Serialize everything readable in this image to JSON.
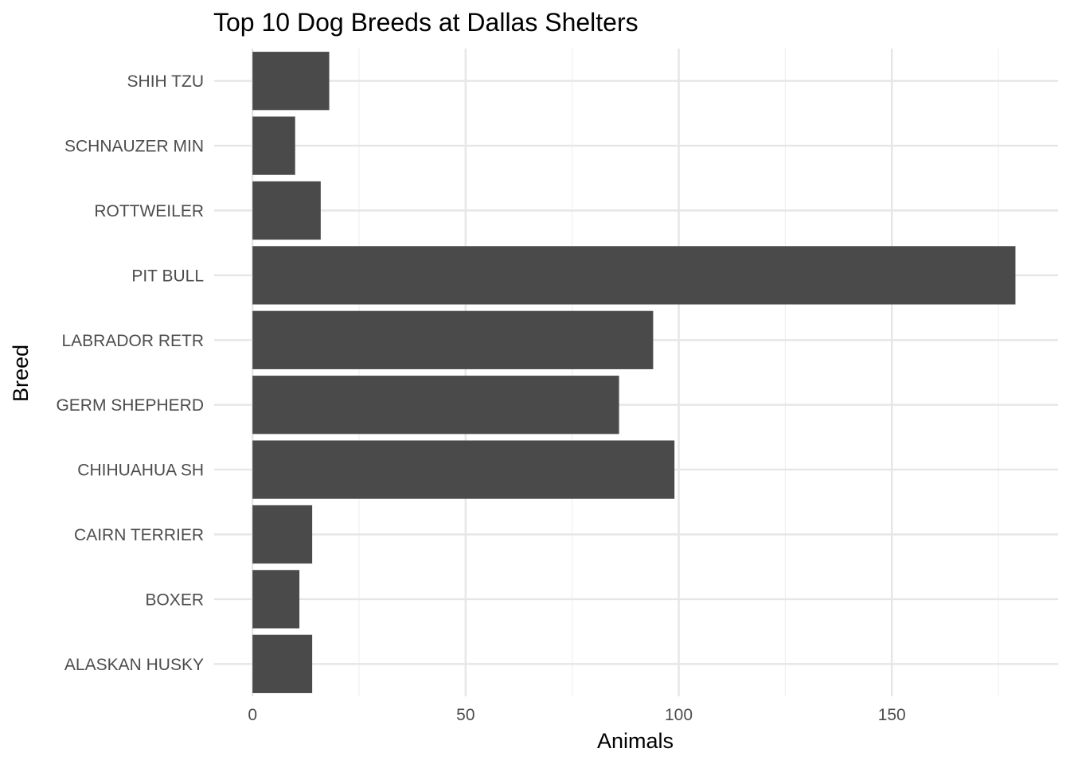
{
  "colors": {
    "bar": "#4a4a4a",
    "grid_major": "#e6e6e6",
    "grid_minor": "#f0f0f0",
    "tick_text": "#4d4d4d",
    "background": "#ffffff"
  },
  "chart_data": {
    "type": "bar",
    "orientation": "horizontal",
    "title": "Top 10 Dog Breeds at Dallas Shelters",
    "xlabel": "Animals",
    "ylabel": "Breed",
    "xlim": [
      -9,
      189
    ],
    "x_ticks": [
      0,
      50,
      100,
      150
    ],
    "x_tick_labels": [
      "0",
      "50",
      "100",
      "150"
    ],
    "grid": true,
    "legend": "none",
    "categories": [
      "ALASKAN HUSKY",
      "BOXER",
      "CAIRN TERRIER",
      "CHIHUAHUA SH",
      "GERM SHEPHERD",
      "LABRADOR RETR",
      "PIT BULL",
      "ROTTWEILER",
      "SCHNAUZER MIN",
      "SHIH TZU"
    ],
    "values": [
      14,
      11,
      14,
      99,
      86,
      94,
      179,
      16,
      10,
      18
    ]
  }
}
